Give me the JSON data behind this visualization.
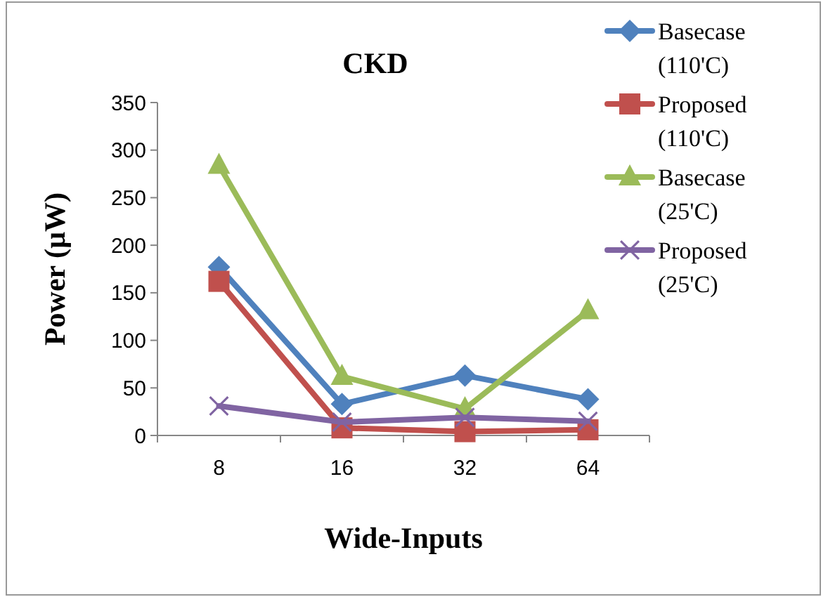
{
  "chart_data": {
    "type": "line",
    "title": "CKD",
    "xlabel": "Wide-Inputs",
    "ylabel": "Power (µW)",
    "categories": [
      "8",
      "16",
      "32",
      "64"
    ],
    "ylim": [
      0,
      350
    ],
    "yticks": [
      0,
      50,
      100,
      150,
      200,
      250,
      300,
      350
    ],
    "grid": false,
    "legend": "right",
    "series": [
      {
        "name": "Basecase (110'C)",
        "color": "#4f81bd",
        "marker": "diamond",
        "values": [
          177,
          33,
          63,
          38
        ]
      },
      {
        "name": "Proposed (110'C)",
        "color": "#c0504d",
        "marker": "square",
        "values": [
          162,
          8,
          4,
          6
        ]
      },
      {
        "name": "Basecase (25'C)",
        "color": "#9bbb59",
        "marker": "triangle",
        "values": [
          284,
          62,
          28,
          131
        ]
      },
      {
        "name": "Proposed (25'C)",
        "color": "#8064a2",
        "marker": "cross",
        "values": [
          31,
          14,
          19,
          15
        ]
      }
    ]
  }
}
